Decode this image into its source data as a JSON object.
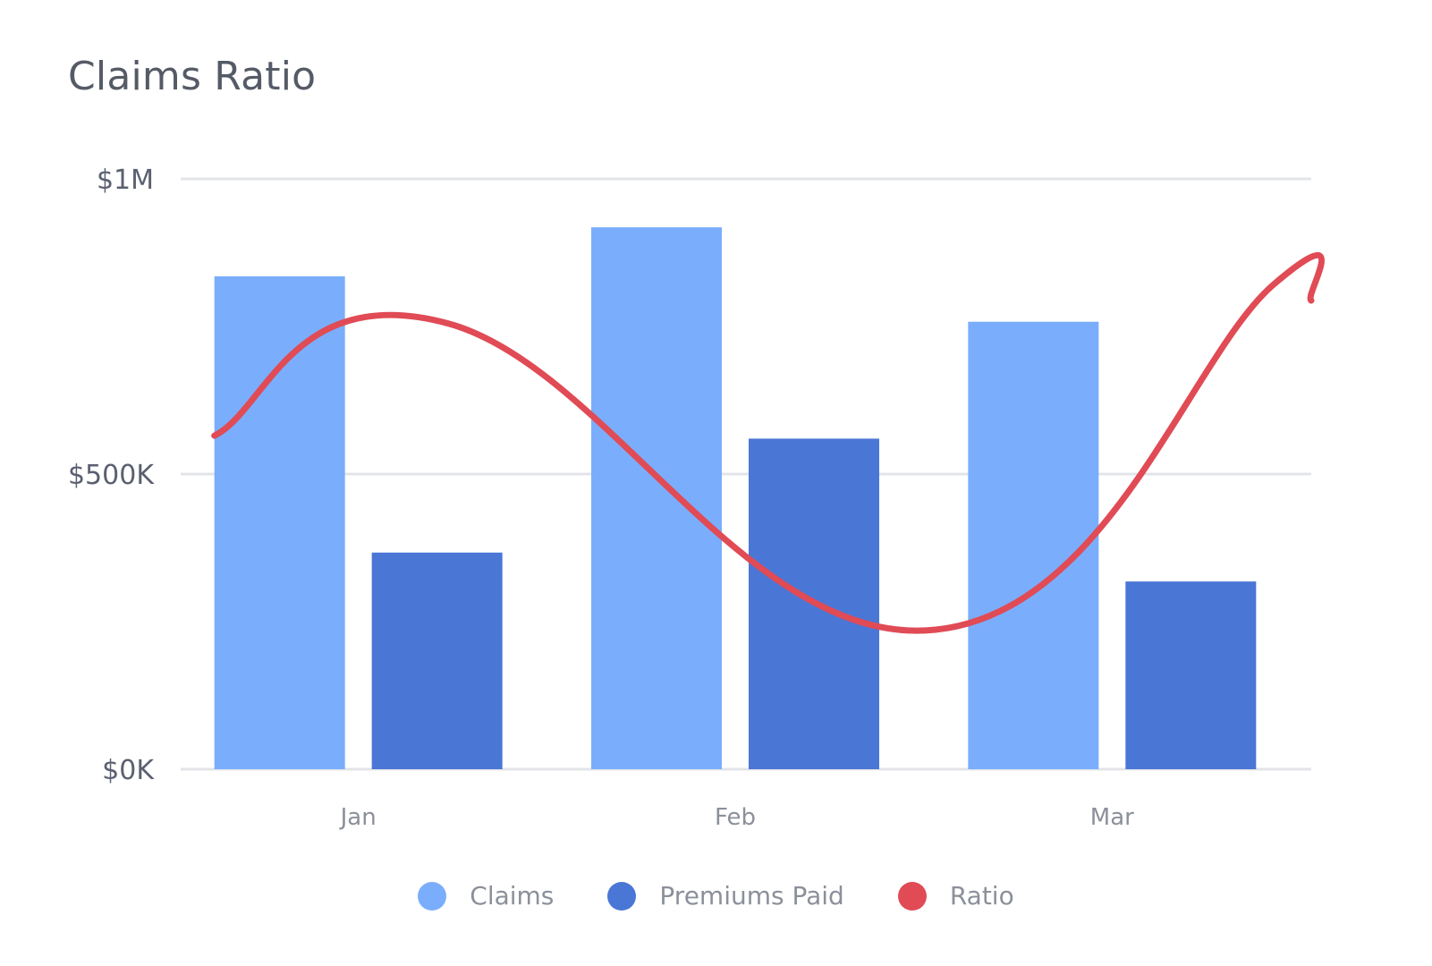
{
  "title": "Claims Ratio",
  "colors": {
    "claims": "#7aaefc",
    "premiums": "#4a76d6",
    "ratio": "#e04b55",
    "grid": "#e3e4e8"
  },
  "legend": [
    {
      "label": "Claims",
      "color_key": "claims"
    },
    {
      "label": "Premiums Paid",
      "color_key": "premiums"
    },
    {
      "label": "Ratio",
      "color_key": "ratio"
    }
  ],
  "chart_data": {
    "type": "bar",
    "title": "Claims Ratio",
    "categories": [
      "Jan",
      "Feb",
      "Mar"
    ],
    "y_ticks": [
      "$0K",
      "$500K",
      "$1M"
    ],
    "y_tick_values": [
      0,
      500000,
      1000000
    ],
    "ylim": [
      0,
      1000000
    ],
    "grid": true,
    "legend_position": "bottom",
    "series": [
      {
        "name": "Claims",
        "type": "bar",
        "values": [
          835000,
          918000,
          758000
        ]
      },
      {
        "name": "Premiums Paid",
        "type": "bar",
        "values": [
          367000,
          560000,
          318000
        ]
      },
      {
        "name": "Ratio",
        "type": "line",
        "smooth": true,
        "points": [
          {
            "x": "Jan start",
            "value": 565000
          },
          {
            "x": "Jan-Feb",
            "value": 755000
          },
          {
            "x": "Feb-Mar",
            "value": 235000
          },
          {
            "x": "Mar end",
            "value": 800000
          }
        ]
      }
    ]
  }
}
